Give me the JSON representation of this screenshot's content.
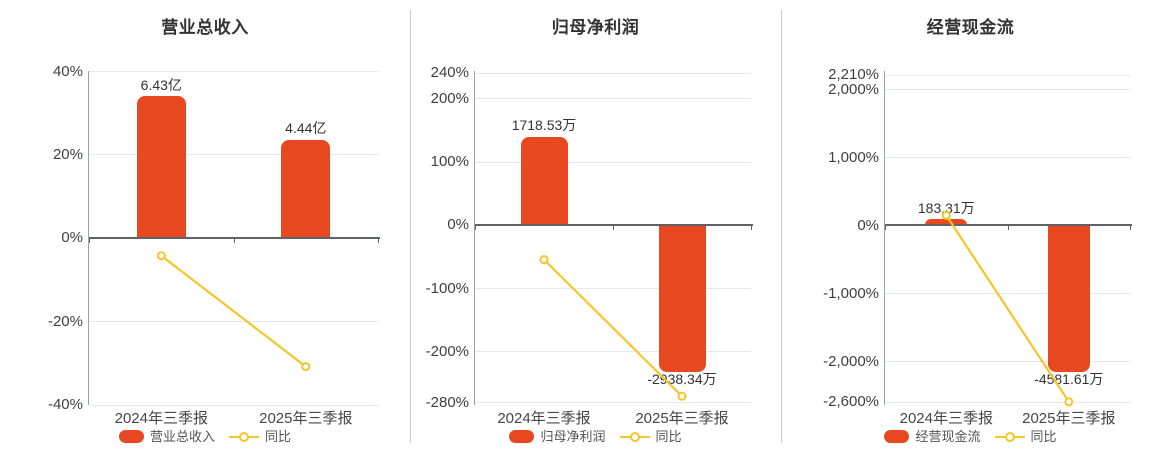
{
  "colors": {
    "bar": "#e8481f",
    "line": "#f5c52a",
    "grid": "#e2e9f4",
    "zero_axis": "#5f6368",
    "y_axis": "#9aa0a6",
    "title_text": "#333333",
    "tick_text": "#404040",
    "bar_label_text": "#333333",
    "category_text": "#474747",
    "legend_text": "#555555",
    "divider": "#cccccc",
    "background": "#ffffff"
  },
  "chart_data": [
    {
      "id": "revenue",
      "type": "bar+line",
      "title": "营业总收入",
      "categories": [
        "2024年三季报",
        "2025年三季报"
      ],
      "bar_series": {
        "name": "营业总收入",
        "unit": "亿",
        "values": [
          6.43,
          4.44
        ],
        "labels": [
          "6.43亿",
          "4.44亿"
        ],
        "axis_display_pct": [
          34,
          23.5
        ]
      },
      "line_series": {
        "name": "同比",
        "values_pct": [
          -4.3,
          -30.9
        ]
      },
      "y_axis": {
        "ylim": [
          -40,
          40
        ],
        "tick_values": [
          40,
          20,
          0,
          -20,
          -40
        ],
        "tick_labels": [
          "40%",
          "20%",
          "0%",
          "-20%",
          "-40%"
        ]
      },
      "legend": [
        "营业总收入",
        "同比"
      ],
      "legend_position": "bottom",
      "grid": true
    },
    {
      "id": "net-profit",
      "type": "bar+line",
      "title": "归母净利润",
      "categories": [
        "2024年三季报",
        "2025年三季报"
      ],
      "bar_series": {
        "name": "归母净利润",
        "unit": "万",
        "values": [
          1718.53,
          -2938.34
        ],
        "labels": [
          "1718.53万",
          "-2938.34万"
        ],
        "axis_display_pct": [
          139,
          -232
        ]
      },
      "line_series": {
        "name": "同比",
        "values_pct": [
          -55,
          -271
        ]
      },
      "y_axis": {
        "ylim": [
          -284,
          243
        ],
        "tick_values": [
          240,
          200,
          100,
          0,
          -100,
          -200,
          -280
        ],
        "tick_labels": [
          "240%",
          "200%",
          "100%",
          "0%",
          "-100%",
          "-200%",
          "-280%"
        ]
      },
      "legend": [
        "归母净利润",
        "同比"
      ],
      "legend_position": "bottom",
      "grid": true
    },
    {
      "id": "operating-cash-flow",
      "type": "bar+line",
      "title": "经营现金流",
      "categories": [
        "2024年三季报",
        "2025年三季报"
      ],
      "bar_series": {
        "name": "经营现金流",
        "unit": "万",
        "values": [
          183.31,
          -4581.61
        ],
        "labels": [
          "183.31万",
          "-4581.61万"
        ],
        "axis_display_pct": [
          85,
          -2155
        ]
      },
      "line_series": {
        "name": "同比",
        "values_pct": [
          140,
          -2600
        ]
      },
      "y_axis": {
        "ylim": [
          -2640,
          2264
        ],
        "tick_values": [
          2210,
          2000,
          1000,
          0,
          -1000,
          -2000,
          -2600
        ],
        "tick_labels": [
          "2,210%",
          "2,000%",
          "1,000%",
          "0%",
          "-1,000%",
          "-2,000%",
          "-2,600%"
        ]
      },
      "legend": [
        "经营现金流",
        "同比"
      ],
      "legend_position": "bottom",
      "grid": true
    }
  ]
}
